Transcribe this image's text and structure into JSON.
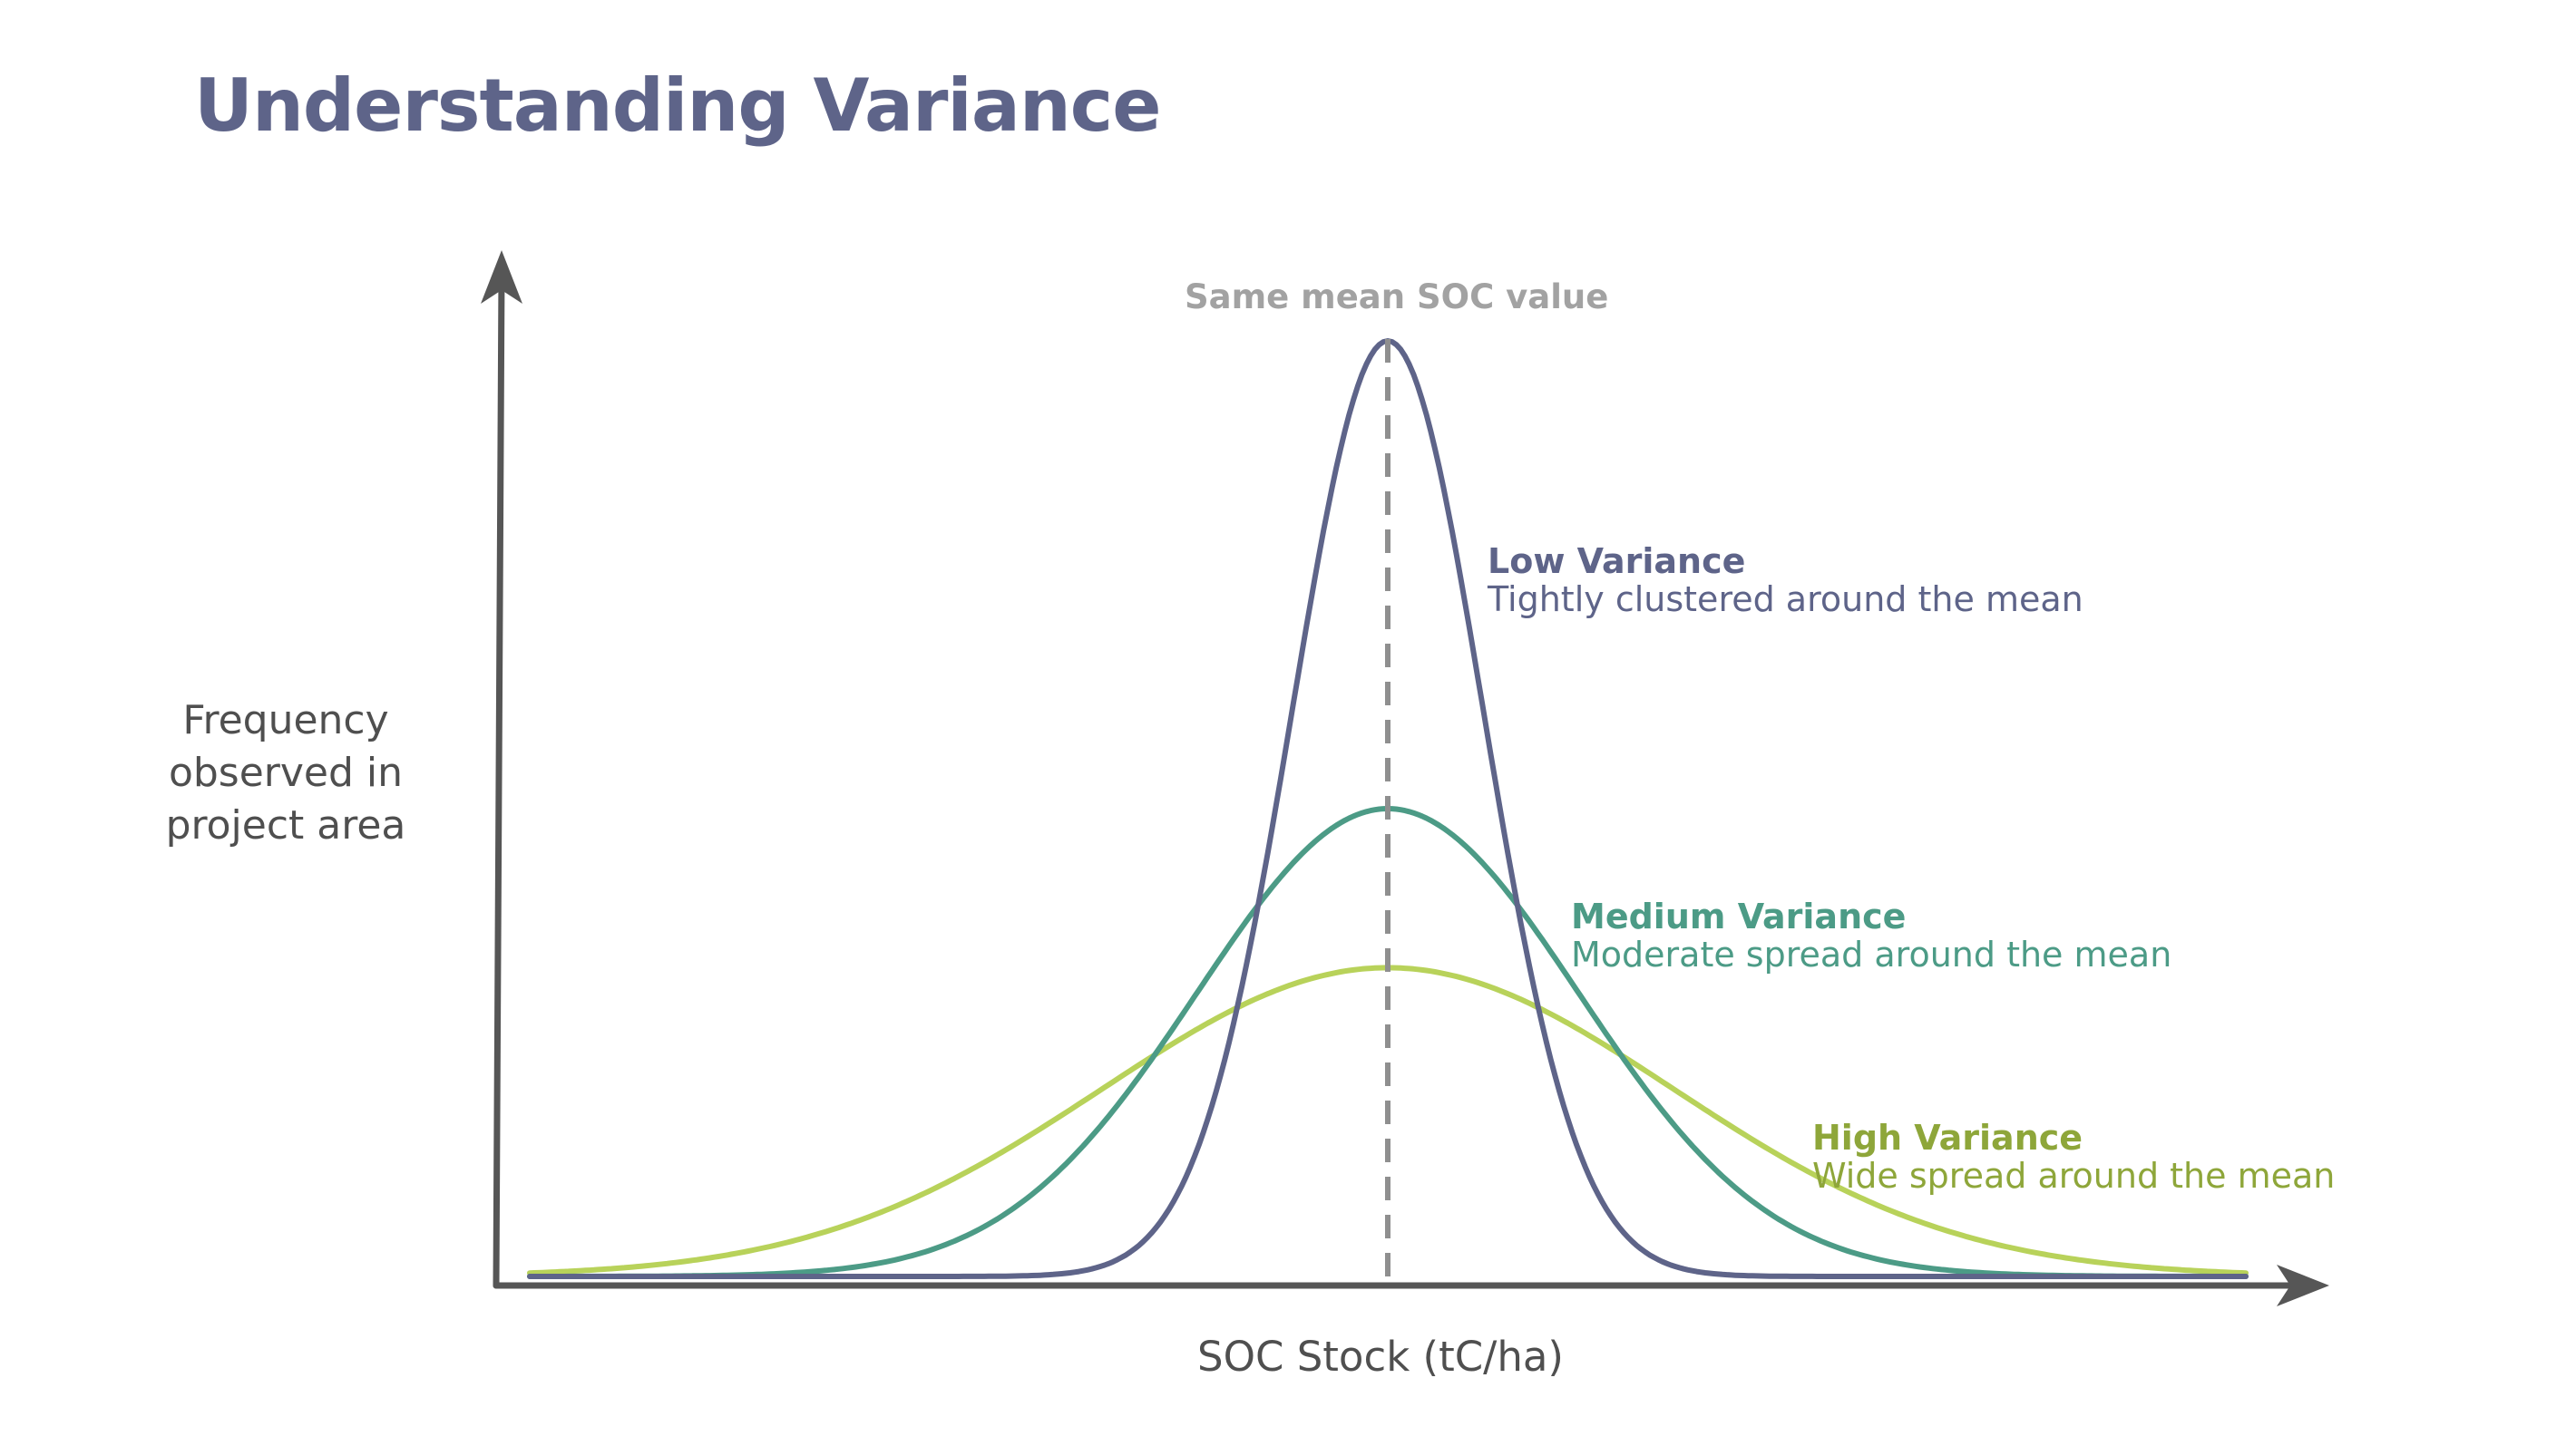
{
  "title": "Understanding Variance",
  "chart_data": {
    "type": "line",
    "xlabel": "SOC Stock (tC/ha)",
    "ylabel": "Frequency observed in project area",
    "annotations": {
      "mean_line": "Same mean SOC value"
    },
    "series": [
      {
        "name": "Low Variance",
        "description": "Tightly clustered around the mean",
        "color": "#5e6489",
        "peak": 1.0,
        "sigma": 1.0
      },
      {
        "name": "Medium Variance",
        "description": "Moderate spread around the mean",
        "color": "#4c9b86",
        "peak": 0.5,
        "sigma": 2.0
      },
      {
        "name": "High Variance",
        "description": "Wide spread around the mean",
        "color": "#b8d25a",
        "label_color": "#8ea63a",
        "peak": 0.33,
        "sigma": 3.0
      }
    ],
    "mean": 0,
    "xlim": [
      -9,
      9
    ],
    "ylim": [
      0,
      1
    ],
    "grid": false,
    "legend": "inline annotations to the right of each curve"
  }
}
